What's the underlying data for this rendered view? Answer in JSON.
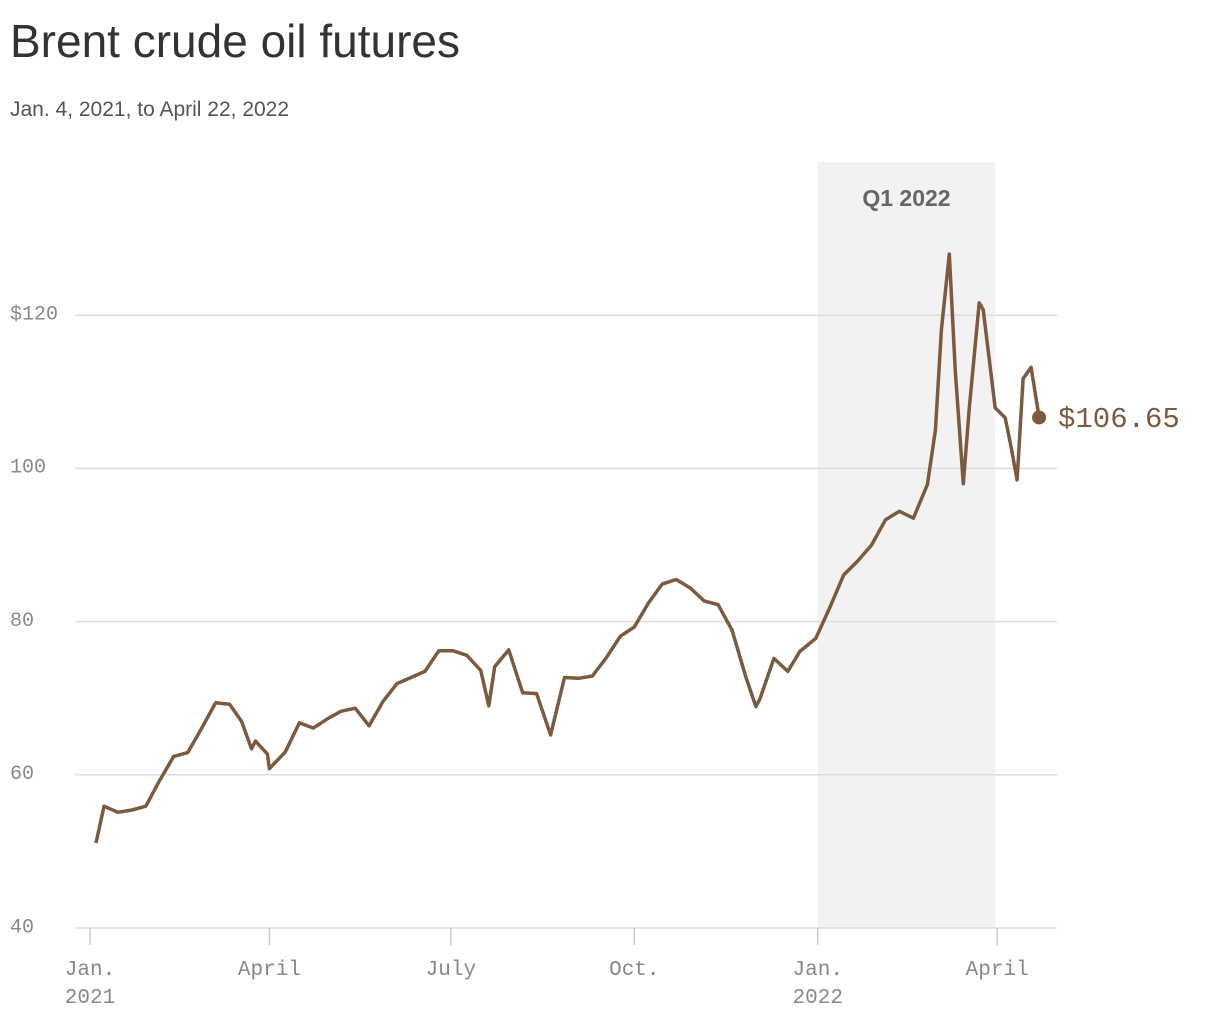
{
  "chart_data": {
    "type": "line",
    "title": "Brent crude oil futures",
    "subtitle": "Jan. 4, 2021, to April 22, 2022",
    "color": "#7b5a3e",
    "x": [
      "2021-01-04",
      "2021-01-08",
      "2021-01-15",
      "2021-01-22",
      "2021-01-29",
      "2021-02-05",
      "2021-02-12",
      "2021-02-19",
      "2021-02-26",
      "2021-03-05",
      "2021-03-12",
      "2021-03-18",
      "2021-03-23",
      "2021-03-25",
      "2021-03-31",
      "2021-04-01",
      "2021-04-09",
      "2021-04-16",
      "2021-04-23",
      "2021-04-30",
      "2021-05-07",
      "2021-05-14",
      "2021-05-21",
      "2021-05-28",
      "2021-06-04",
      "2021-06-11",
      "2021-06-18",
      "2021-06-25",
      "2021-07-02",
      "2021-07-09",
      "2021-07-16",
      "2021-07-20",
      "2021-07-23",
      "2021-07-30",
      "2021-08-06",
      "2021-08-13",
      "2021-08-20",
      "2021-08-27",
      "2021-09-03",
      "2021-09-10",
      "2021-09-17",
      "2021-09-24",
      "2021-10-01",
      "2021-10-08",
      "2021-10-15",
      "2021-10-22",
      "2021-10-29",
      "2021-11-05",
      "2021-11-12",
      "2021-11-19",
      "2021-11-26",
      "2021-12-01",
      "2021-12-03",
      "2021-12-10",
      "2021-12-17",
      "2021-12-23",
      "2021-12-31",
      "2022-01-07",
      "2022-01-14",
      "2022-01-21",
      "2022-01-28",
      "2022-02-04",
      "2022-02-11",
      "2022-02-18",
      "2022-02-25",
      "2022-03-01",
      "2022-03-04",
      "2022-03-08",
      "2022-03-11",
      "2022-03-15",
      "2022-03-18",
      "2022-03-23",
      "2022-03-25",
      "2022-03-31",
      "2022-04-05",
      "2022-04-08",
      "2022-04-11",
      "2022-04-14",
      "2022-04-18",
      "2022-04-21",
      "2022-04-22"
    ],
    "values": [
      51.1,
      55.9,
      55.1,
      55.4,
      55.9,
      59.3,
      62.4,
      62.9,
      66.1,
      69.4,
      69.2,
      67.0,
      63.4,
      64.4,
      62.7,
      60.8,
      63.0,
      66.8,
      66.1,
      67.3,
      68.3,
      68.7,
      66.4,
      69.6,
      71.9,
      72.7,
      73.5,
      76.2,
      76.2,
      75.6,
      73.6,
      69.0,
      74.1,
      76.3,
      70.7,
      70.6,
      65.2,
      72.7,
      72.6,
      72.9,
      75.3,
      78.1,
      79.3,
      82.4,
      84.9,
      85.5,
      84.4,
      82.7,
      82.2,
      78.9,
      72.7,
      68.9,
      69.9,
      75.2,
      73.5,
      76.1,
      77.8,
      81.8,
      86.1,
      87.9,
      90.0,
      93.3,
      94.4,
      93.5,
      97.9,
      104.97,
      118.1,
      127.98,
      112.7,
      98.0,
      107.9,
      121.6,
      120.7,
      107.9,
      106.6,
      102.8,
      98.5,
      111.7,
      113.2,
      108.3,
      106.65
    ],
    "end_label": {
      "value": 106.65,
      "label": "$106.65"
    },
    "shade": {
      "label": "Q1 2022",
      "x": [
        "2022-01-01",
        "2022-03-31"
      ]
    },
    "xlim": [
      "2021-01-01",
      "2022-05-01"
    ],
    "xticks": [
      {
        "value": "2021-01-01",
        "label": "Jan.\n2021"
      },
      {
        "value": "2021-04-01",
        "label": "April"
      },
      {
        "value": "2021-07-01",
        "label": "July"
      },
      {
        "value": "2021-10-01",
        "label": "Oct."
      },
      {
        "value": "2022-01-01",
        "label": "Jan.\n2022"
      },
      {
        "value": "2022-04-01",
        "label": "April"
      }
    ],
    "ylim": [
      40,
      140
    ],
    "yticks": [
      40,
      60,
      80,
      100,
      {
        "value": 120,
        "label": "$120"
      }
    ],
    "grid": true
  }
}
